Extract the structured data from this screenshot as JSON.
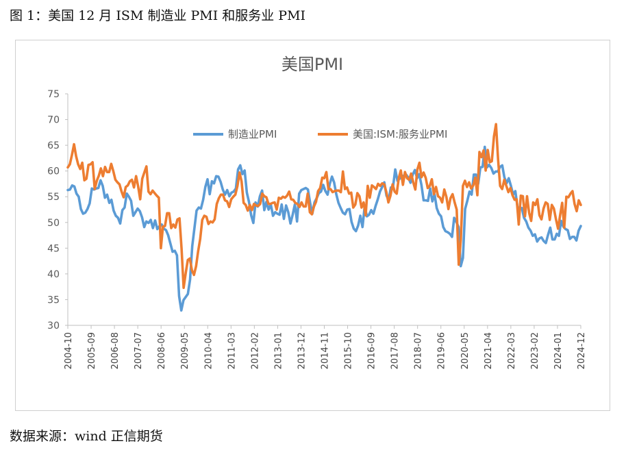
{
  "figure": {
    "caption": "图 1：美国 12 月 ISM 制造业 PMI 和服务业 PMI",
    "source": "数据来源：wind 正信期货"
  },
  "colors": {
    "manufacturing": "#5B9BD5",
    "services": "#ED7D31",
    "axis": "#bfbfbf"
  },
  "chart_data": {
    "type": "line",
    "title": "美国PMI",
    "xlabel": "",
    "ylabel": "",
    "ylim": [
      30,
      75
    ],
    "yticks": [
      30,
      35,
      40,
      45,
      50,
      55,
      60,
      65,
      70,
      75
    ],
    "grid": false,
    "legend_position": "top-center",
    "xticks": [
      "2004-10",
      "2005-09",
      "2006-08",
      "2007-07",
      "2008-06",
      "2009-05",
      "2010-04",
      "2011-03",
      "2012-02",
      "2013-01",
      "2013-12",
      "2014-11",
      "2015-10",
      "2016-09",
      "2017-08",
      "2018-07",
      "2019-06",
      "2020-05",
      "2021-04",
      "2022-03",
      "2023-02",
      "2024-01",
      "2024-12"
    ],
    "x_start": "2004-10",
    "x_end": "2024-12",
    "series": [
      {
        "name": "制造业PMI",
        "values": [
          56.3,
          56.4,
          57.2,
          57.0,
          55.6,
          55.0,
          52.6,
          51.7,
          51.9,
          52.6,
          53.7,
          56.6,
          56.4,
          56.6,
          56.7,
          58.2,
          57.1,
          54.8,
          55.4,
          53.8,
          54.4,
          52.3,
          51.3,
          50.9,
          49.8,
          52.4,
          52.9,
          55.6,
          55.0,
          54.2,
          51.3,
          52.0,
          52.7,
          52.2,
          51.0,
          49.1,
          50.2,
          49.9,
          50.5,
          48.9,
          50.4,
          48.7,
          49.3,
          49.6,
          48.8,
          48.5,
          47.5,
          45.9,
          44.3,
          44.5,
          43.6,
          35.7,
          32.9,
          34.9,
          35.5,
          36.1,
          38.9,
          45.4,
          48.9,
          52.3,
          52.9,
          52.7,
          54.4,
          56.9,
          58.4,
          55.5,
          58.0,
          57.6,
          59.0,
          58.9,
          57.9,
          56.4,
          55.4,
          56.3,
          55.1,
          55.8,
          56.0,
          56.6,
          60.3,
          61.1,
          59.4,
          60.1,
          55.8,
          54.0,
          51.4,
          49.9,
          53.9,
          53.1,
          55.1,
          56.2,
          52.4,
          54.0,
          52.5,
          53.5,
          51.3,
          52.0,
          51.7,
          51.5,
          53.5,
          50.7,
          53.3,
          52.0,
          49.8,
          51.5,
          53.5,
          50.2,
          55.6,
          56.3,
          56.5,
          56.7,
          56.4,
          53.8,
          51.7,
          53.9,
          54.7,
          55.7,
          56.0,
          57.3,
          56.1,
          55.4,
          57.5,
          58.9,
          57.8,
          55.5,
          53.8,
          52.8,
          51.9,
          51.6,
          52.5,
          52.6,
          50.1,
          48.8,
          48.3,
          49.4,
          51.3,
          49.1,
          53.2,
          51.2,
          51.5,
          52.4,
          51.7,
          53.2,
          54.5,
          56.0,
          56.9,
          57.8,
          55.2,
          54.4,
          56.8,
          57.0,
          60.3,
          58.1,
          58.5,
          59.0,
          59.1,
          59.3,
          58.7,
          57.7,
          59.3,
          60.2,
          58.6,
          59.4,
          57.3,
          54.3,
          54.3,
          54.2,
          56.6,
          54.1,
          55.5,
          52.8,
          51.7,
          51.2,
          49.1,
          48.3,
          48.1,
          47.8,
          47.2,
          50.9,
          50.1,
          49.1,
          41.5,
          43.1,
          52.6,
          54.2,
          56.0,
          55.4,
          59.3,
          59.3,
          57.5,
          60.7,
          60.8,
          64.7,
          60.7,
          61.2,
          60.6,
          59.5,
          59.9,
          59.9,
          60.8,
          61.1,
          58.8,
          57.6,
          58.6,
          57.1,
          55.4,
          56.1,
          53.0,
          52.8,
          52.8,
          50.9,
          50.2,
          49.0,
          48.4,
          47.4,
          47.7,
          46.3,
          46.9,
          47.1,
          46.4,
          46.0,
          47.6,
          49.0,
          46.7,
          46.7,
          47.8,
          47.4,
          50.3,
          49.2,
          48.7,
          48.5,
          46.8,
          47.2,
          47.2,
          46.5,
          48.4,
          49.3
        ]
      },
      {
        "name": "美国:ISM:服务业PMI",
        "values": [
          60.7,
          61.3,
          63.1,
          65.2,
          62.9,
          61.3,
          60.4,
          61.6,
          58.2,
          58.5,
          61.2,
          61.3,
          61.7,
          56.5,
          58.1,
          59.1,
          60.5,
          59.0,
          60.8,
          59.8,
          59.8,
          61.4,
          60.0,
          58.3,
          57.8,
          57.4,
          56.0,
          54.9,
          56.9,
          57.2,
          58.0,
          58.3,
          56.8,
          59.0,
          57.0,
          54.5,
          58.5,
          59.7,
          60.9,
          56.0,
          55.5,
          56.2,
          55.7,
          55.2,
          54.8,
          45.0,
          49.2,
          49.3,
          51.8,
          51.8,
          48.9,
          49.6,
          49.0,
          50.6,
          50.8,
          44.9,
          37.3,
          40.1,
          42.7,
          43.0,
          40.7,
          39.8,
          41.5,
          44.4,
          46.8,
          50.5,
          51.3,
          51.1,
          49.7,
          50.2,
          50.0,
          50.6,
          53.6,
          54.7,
          55.4,
          55.4,
          54.3,
          54.1,
          53.0,
          54.5,
          55.0,
          55.4,
          57.1,
          59.7,
          58.0,
          53.8,
          53.4,
          52.3,
          53.4,
          52.4,
          53.6,
          53.3,
          53.2,
          53.6,
          55.6,
          55.1,
          54.9,
          53.6,
          53.6,
          53.8,
          53.9,
          52.5,
          54.8,
          54.6,
          55.0,
          54.8,
          55.2,
          56.0,
          54.5,
          54.4,
          53.8,
          53.6,
          53.0,
          53.9,
          53.1,
          53.1,
          55.6,
          52.0,
          51.6,
          53.1,
          54.0,
          56.1,
          56.7,
          58.7,
          58.6,
          59.8,
          56.5,
          56.5,
          55.9,
          56.1,
          56.2,
          56.2,
          55.9,
          59.9,
          56.5,
          56.8,
          55.6,
          55.8,
          52.9,
          53.5,
          55.7,
          55.1,
          52.9,
          53.9,
          51.4,
          57.1,
          54.8,
          57.2,
          56.9,
          56.5,
          57.5,
          57.1,
          57.6,
          57.4,
          55.9,
          53.9,
          55.2,
          57.4,
          56.0,
          55.6,
          58.6,
          60.1,
          57.3,
          59.8,
          58.6,
          58.3,
          59.5,
          57.8,
          56.4,
          60.3,
          61.6,
          58.8,
          59.7,
          58.7,
          56.7,
          57.1,
          58.4,
          55.5,
          56.9,
          55.1,
          54.8,
          53.9,
          56.4,
          55.0,
          52.6,
          54.7,
          55.5,
          53.9,
          52.5,
          41.8,
          46.6,
          57.1,
          58.1,
          56.9,
          57.8,
          56.6,
          57.2,
          58.7,
          55.3,
          63.7,
          62.7,
          64.0,
          60.1,
          64.1,
          61.7,
          61.9,
          66.7,
          69.1,
          62.3,
          57.1,
          56.5,
          58.3,
          57.1,
          55.9,
          56.7,
          55.3,
          54.4,
          54.5,
          49.6,
          55.2,
          55.1,
          51.2,
          55.1,
          51.9,
          50.3,
          53.9,
          53.4,
          54.5,
          51.4,
          50.6,
          52.7,
          53.9,
          53.6,
          50.5,
          53.4,
          52.7,
          50.6,
          48.8,
          51.4,
          53.8,
          49.0,
          55.0,
          54.9,
          55.6,
          56.1,
          53.6,
          52.2,
          54.3,
          53.4
        ]
      }
    ]
  }
}
